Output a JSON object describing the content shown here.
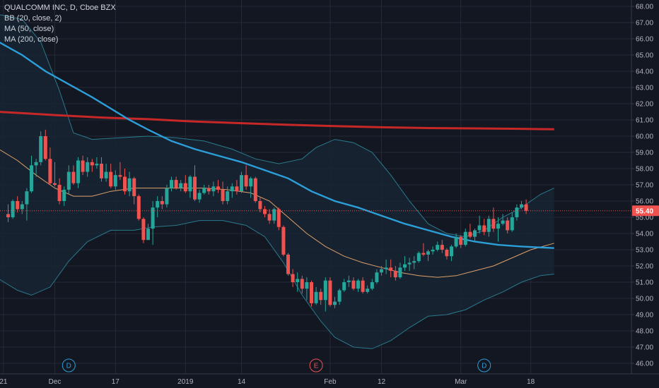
{
  "legend": {
    "title": "QUALCOMM INC, D, Cboe BZX",
    "bb": "BB (20, close, 2)",
    "ma50": "MA (50, close)",
    "ma200": "MA (200, close)"
  },
  "colors": {
    "background": "#131722",
    "grid": "#252a37",
    "up": "#26a69a",
    "down": "#ef5350",
    "bb": "#2a7a8c",
    "bb_fill": "#172433",
    "bb_basis": "#e0a06a",
    "ma50": "#2c9fd8",
    "ma200": "#c62828",
    "last_price_line": "#ef5350",
    "axis_text": "#b2b5be"
  },
  "chart_data": {
    "type": "candlestick",
    "title": "QUALCOMM INC, D, Cboe BZX",
    "ylim": [
      46.0,
      68.0
    ],
    "y_ticks": [
      "46.00",
      "47.00",
      "48.00",
      "49.00",
      "50.00",
      "51.00",
      "52.00",
      "53.00",
      "54.00",
      "55.00",
      "56.00",
      "57.00",
      "58.00",
      "59.00",
      "60.00",
      "61.00",
      "62.00",
      "63.00",
      "64.00",
      "65.00",
      "66.00",
      "67.00",
      "68.00"
    ],
    "x_tick_labels": [
      "21",
      "Dec",
      "17",
      "2019",
      "14",
      "Feb",
      "12",
      "Mar",
      "18"
    ],
    "x_tick_index": [
      -1,
      10,
      23,
      38,
      50,
      69,
      80,
      97,
      112
    ],
    "last_price": "55.40",
    "events": [
      {
        "label": "D",
        "index": 13,
        "type": "dividend"
      },
      {
        "label": "E",
        "index": 66,
        "type": "earnings"
      },
      {
        "label": "D",
        "index": 102,
        "type": "dividend"
      }
    ],
    "candles": [
      [
        55.2,
        55.8,
        54.7,
        55.0
      ],
      [
        55.0,
        56.1,
        54.9,
        56.0
      ],
      [
        56.0,
        56.3,
        55.3,
        55.5
      ],
      [
        55.5,
        56.0,
        55.2,
        55.8
      ],
      [
        55.8,
        56.8,
        54.8,
        56.6
      ],
      [
        56.6,
        58.8,
        56.5,
        58.2
      ],
      [
        58.2,
        58.6,
        57.5,
        58.4
      ],
      [
        58.4,
        60.3,
        58.2,
        60.0
      ],
      [
        60.0,
        60.4,
        58.5,
        58.6
      ],
      [
        58.6,
        59.3,
        57.0,
        57.1
      ],
      [
        57.1,
        58.4,
        56.9,
        57.0
      ],
      [
        57.0,
        57.4,
        55.8,
        56.0
      ],
      [
        56.0,
        56.9,
        55.7,
        56.7
      ],
      [
        56.7,
        58.2,
        56.4,
        57.8
      ],
      [
        57.8,
        58.2,
        57.0,
        57.1
      ],
      [
        57.1,
        58.7,
        56.8,
        58.5
      ],
      [
        58.5,
        58.8,
        57.6,
        57.8
      ],
      [
        57.8,
        58.7,
        57.5,
        58.4
      ],
      [
        58.4,
        58.6,
        57.8,
        58.2
      ],
      [
        58.2,
        58.7,
        58.0,
        58.3
      ],
      [
        58.3,
        58.7,
        57.2,
        57.4
      ],
      [
        57.4,
        58.3,
        57.2,
        57.8
      ],
      [
        57.8,
        58.3,
        56.8,
        56.9
      ],
      [
        56.9,
        57.9,
        56.7,
        57.6
      ],
      [
        57.6,
        58.4,
        57.3,
        57.5
      ],
      [
        57.5,
        58.0,
        56.4,
        56.6
      ],
      [
        56.6,
        57.8,
        56.3,
        57.4
      ],
      [
        57.4,
        57.5,
        55.8,
        56.3
      ],
      [
        56.3,
        56.4,
        54.8,
        54.9
      ],
      [
        54.9,
        55.0,
        53.4,
        53.6
      ],
      [
        53.6,
        54.6,
        53.6,
        54.3
      ],
      [
        54.3,
        56.0,
        53.3,
        55.6
      ],
      [
        55.6,
        56.3,
        55.0,
        56.0
      ],
      [
        56.0,
        56.3,
        55.5,
        55.8
      ],
      [
        55.8,
        57.0,
        55.6,
        56.8
      ],
      [
        56.8,
        57.5,
        56.6,
        57.3
      ],
      [
        57.3,
        57.5,
        56.7,
        56.8
      ],
      [
        56.8,
        57.3,
        56.6,
        57.1
      ],
      [
        57.1,
        57.6,
        56.5,
        56.6
      ],
      [
        56.6,
        57.6,
        56.2,
        57.5
      ],
      [
        57.5,
        58.2,
        56.0,
        56.1
      ],
      [
        56.1,
        56.7,
        55.9,
        56.5
      ],
      [
        56.5,
        57.0,
        56.4,
        56.8
      ],
      [
        56.8,
        57.0,
        56.4,
        56.6
      ],
      [
        56.6,
        57.2,
        56.3,
        56.9
      ],
      [
        56.9,
        57.3,
        56.5,
        56.7
      ],
      [
        56.7,
        57.2,
        55.8,
        56.0
      ],
      [
        56.0,
        56.9,
        55.8,
        56.6
      ],
      [
        56.6,
        57.1,
        56.2,
        56.9
      ],
      [
        56.9,
        57.3,
        56.4,
        56.6
      ],
      [
        56.6,
        57.8,
        56.5,
        57.6
      ],
      [
        57.6,
        58.2,
        56.7,
        56.9
      ],
      [
        56.9,
        57.5,
        56.2,
        57.4
      ],
      [
        57.4,
        57.5,
        55.9,
        56.0
      ],
      [
        56.0,
        56.2,
        55.3,
        55.5
      ],
      [
        55.5,
        55.7,
        55.0,
        55.2
      ],
      [
        55.2,
        55.5,
        54.6,
        54.8
      ],
      [
        54.8,
        55.6,
        54.6,
        55.5
      ],
      [
        55.5,
        55.6,
        54.2,
        54.4
      ],
      [
        54.4,
        54.5,
        52.6,
        52.7
      ],
      [
        52.7,
        52.8,
        51.4,
        51.5
      ],
      [
        51.5,
        51.8,
        50.7,
        51.0
      ],
      [
        51.0,
        51.6,
        50.4,
        51.2
      ],
      [
        51.2,
        51.4,
        50.3,
        50.6
      ],
      [
        50.6,
        51.3,
        49.9,
        51.0
      ],
      [
        51.0,
        51.1,
        49.5,
        49.7
      ],
      [
        49.7,
        50.7,
        49.6,
        50.4
      ],
      [
        50.4,
        50.6,
        49.6,
        49.9
      ],
      [
        49.9,
        51.3,
        49.2,
        51.1
      ],
      [
        51.1,
        51.3,
        49.5,
        49.6
      ],
      [
        49.6,
        50.1,
        49.4,
        49.8
      ],
      [
        49.8,
        50.6,
        49.6,
        50.5
      ],
      [
        50.5,
        51.2,
        50.4,
        51.0
      ],
      [
        51.0,
        51.4,
        50.7,
        51.1
      ],
      [
        51.1,
        51.3,
        50.5,
        50.6
      ],
      [
        50.6,
        51.2,
        50.4,
        51.1
      ],
      [
        51.1,
        51.3,
        50.3,
        50.4
      ],
      [
        50.4,
        50.8,
        50.3,
        50.6
      ],
      [
        50.6,
        51.2,
        50.5,
        51.0
      ],
      [
        51.0,
        51.8,
        50.9,
        51.6
      ],
      [
        51.6,
        52.0,
        51.4,
        51.8
      ],
      [
        51.8,
        52.4,
        51.5,
        51.9
      ],
      [
        51.9,
        52.4,
        51.3,
        51.7
      ],
      [
        51.7,
        52.0,
        51.1,
        51.3
      ],
      [
        51.3,
        52.2,
        51.2,
        51.9
      ],
      [
        51.9,
        52.6,
        51.7,
        52.1
      ],
      [
        52.1,
        52.5,
        51.7,
        52.2
      ],
      [
        52.2,
        52.6,
        51.8,
        52.3
      ],
      [
        52.3,
        52.9,
        52.2,
        52.8
      ],
      [
        52.8,
        53.4,
        52.6,
        52.7
      ],
      [
        52.7,
        53.0,
        52.3,
        52.9
      ],
      [
        52.9,
        53.2,
        52.7,
        53.0
      ],
      [
        53.0,
        53.5,
        52.9,
        53.3
      ],
      [
        53.3,
        53.6,
        52.8,
        53.0
      ],
      [
        53.0,
        53.1,
        52.4,
        52.6
      ],
      [
        52.6,
        53.3,
        52.3,
        53.2
      ],
      [
        53.2,
        54.0,
        53.1,
        53.8
      ],
      [
        53.8,
        53.9,
        53.1,
        53.3
      ],
      [
        53.3,
        54.3,
        53.2,
        54.1
      ],
      [
        54.1,
        54.6,
        53.7,
        53.8
      ],
      [
        53.8,
        54.3,
        53.5,
        54.2
      ],
      [
        54.2,
        55.1,
        54.0,
        54.5
      ],
      [
        54.5,
        54.9,
        53.9,
        54.1
      ],
      [
        54.1,
        55.1,
        53.8,
        54.9
      ],
      [
        54.9,
        55.6,
        54.1,
        54.3
      ],
      [
        54.3,
        55.0,
        53.5,
        54.6
      ],
      [
        54.6,
        55.2,
        54.5,
        54.8
      ],
      [
        54.8,
        55.0,
        54.0,
        54.2
      ],
      [
        54.2,
        55.3,
        54.1,
        55.0
      ],
      [
        55.0,
        55.8,
        54.8,
        55.6
      ],
      [
        55.6,
        56.0,
        55.5,
        55.8
      ],
      [
        55.8,
        56.1,
        55.2,
        55.4
      ]
    ],
    "ma200": [
      [
        -2,
        61.5
      ],
      [
        4,
        61.4
      ],
      [
        10,
        61.3
      ],
      [
        20,
        61.15
      ],
      [
        30,
        61.05
      ],
      [
        40,
        60.9
      ],
      [
        50,
        60.8
      ],
      [
        60,
        60.7
      ],
      [
        70,
        60.62
      ],
      [
        80,
        60.55
      ],
      [
        90,
        60.5
      ],
      [
        100,
        60.48
      ],
      [
        110,
        60.45
      ],
      [
        117,
        60.42
      ]
    ],
    "ma50": [
      [
        -2,
        65.8
      ],
      [
        3,
        65.0
      ],
      [
        8,
        64.0
      ],
      [
        13,
        63.2
      ],
      [
        18,
        62.4
      ],
      [
        22,
        61.7
      ],
      [
        26,
        61.0
      ],
      [
        30,
        60.4
      ],
      [
        35,
        59.7
      ],
      [
        40,
        59.2
      ],
      [
        45,
        58.8
      ],
      [
        50,
        58.4
      ],
      [
        55,
        57.9
      ],
      [
        60,
        57.4
      ],
      [
        65,
        56.6
      ],
      [
        70,
        56.0
      ],
      [
        75,
        55.6
      ],
      [
        80,
        55.1
      ],
      [
        85,
        54.6
      ],
      [
        90,
        54.2
      ],
      [
        95,
        53.8
      ],
      [
        100,
        53.5
      ],
      [
        105,
        53.3
      ],
      [
        110,
        53.2
      ],
      [
        117,
        53.1
      ]
    ],
    "bb_upper": [
      [
        -2,
        67.5
      ],
      [
        3,
        67.2
      ],
      [
        7,
        65.8
      ],
      [
        11,
        62.8
      ],
      [
        14,
        60.2
      ],
      [
        18,
        59.8
      ],
      [
        24,
        59.9
      ],
      [
        30,
        60.0
      ],
      [
        36,
        59.9
      ],
      [
        42,
        59.7
      ],
      [
        48,
        59.2
      ],
      [
        53,
        58.6
      ],
      [
        58,
        58.3
      ],
      [
        63,
        58.6
      ],
      [
        66,
        59.3
      ],
      [
        70,
        59.8
      ],
      [
        74,
        59.6
      ],
      [
        78,
        59.0
      ],
      [
        82,
        57.6
      ],
      [
        86,
        56.0
      ],
      [
        90,
        54.6
      ],
      [
        94,
        54.0
      ],
      [
        98,
        53.8
      ],
      [
        102,
        54.2
      ],
      [
        106,
        55.0
      ],
      [
        110,
        55.6
      ],
      [
        114,
        56.4
      ],
      [
        117,
        56.8
      ]
    ],
    "bb_lower": [
      [
        -2,
        51.2
      ],
      [
        2,
        50.5
      ],
      [
        5,
        50.2
      ],
      [
        9,
        50.7
      ],
      [
        13,
        52.3
      ],
      [
        17,
        53.5
      ],
      [
        22,
        54.2
      ],
      [
        27,
        54.2
      ],
      [
        31,
        54.4
      ],
      [
        36,
        54.5
      ],
      [
        41,
        54.8
      ],
      [
        46,
        54.8
      ],
      [
        51,
        54.5
      ],
      [
        55,
        53.8
      ],
      [
        59,
        52.2
      ],
      [
        63,
        50.2
      ],
      [
        67,
        48.6
      ],
      [
        70,
        47.6
      ],
      [
        74,
        47.0
      ],
      [
        78,
        46.9
      ],
      [
        82,
        47.4
      ],
      [
        86,
        48.2
      ],
      [
        90,
        48.9
      ],
      [
        94,
        49.0
      ],
      [
        98,
        49.3
      ],
      [
        102,
        49.9
      ],
      [
        106,
        50.4
      ],
      [
        110,
        51.0
      ],
      [
        114,
        51.4
      ],
      [
        117,
        51.5
      ]
    ],
    "bb_basis": [
      [
        -2,
        59.2
      ],
      [
        2,
        58.5
      ],
      [
        6,
        57.6
      ],
      [
        10,
        56.8
      ],
      [
        14,
        56.3
      ],
      [
        18,
        56.3
      ],
      [
        22,
        56.6
      ],
      [
        27,
        56.8
      ],
      [
        32,
        56.8
      ],
      [
        37,
        56.8
      ],
      [
        42,
        56.8
      ],
      [
        47,
        56.7
      ],
      [
        52,
        56.5
      ],
      [
        56,
        56.0
      ],
      [
        60,
        55.0
      ],
      [
        64,
        54.0
      ],
      [
        68,
        53.2
      ],
      [
        72,
        52.6
      ],
      [
        76,
        52.2
      ],
      [
        80,
        51.9
      ],
      [
        84,
        51.6
      ],
      [
        88,
        51.4
      ],
      [
        92,
        51.3
      ],
      [
        96,
        51.4
      ],
      [
        100,
        51.7
      ],
      [
        104,
        52.0
      ],
      [
        108,
        52.5
      ],
      [
        112,
        53.0
      ],
      [
        117,
        53.4
      ]
    ]
  }
}
